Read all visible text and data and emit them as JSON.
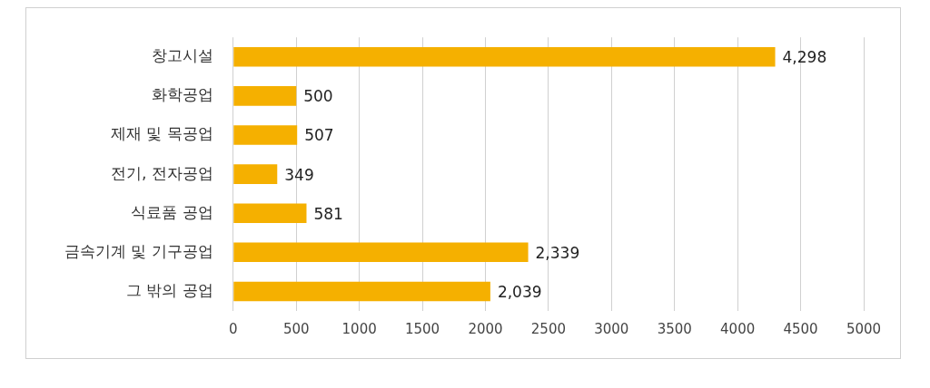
{
  "chart_data": {
    "type": "bar",
    "orientation": "horizontal",
    "categories": [
      "창고시설",
      "화학공업",
      "제재 및 목공업",
      "전기, 전자공업",
      "식료품 공업",
      "금속기계 및 기구공업",
      "그 밖의 공업"
    ],
    "values": [
      4298,
      500,
      507,
      349,
      581,
      2339,
      2039
    ],
    "value_labels": [
      "4,298",
      "500",
      "507",
      "349",
      "581",
      "2,339",
      "2,039"
    ],
    "color": "#f5b000",
    "xlim": [
      0,
      5000
    ],
    "xticks": [
      0,
      500,
      1000,
      1500,
      2000,
      2500,
      3000,
      3500,
      4000,
      4500,
      5000
    ],
    "grid": "x",
    "legend": false
  }
}
